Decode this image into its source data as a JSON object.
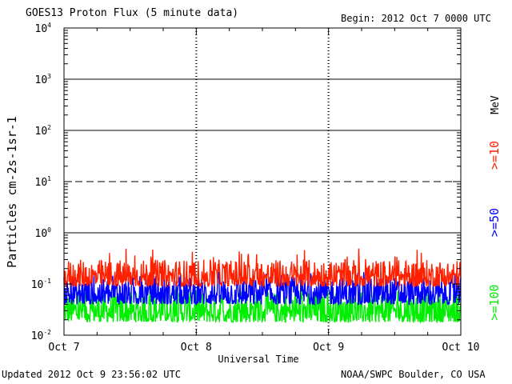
{
  "header": {
    "title": "GOES13 Proton Flux (5 minute data)",
    "begin": "Begin: 2012 Oct 7 0000 UTC"
  },
  "footer": {
    "updated": "Updated 2012 Oct  9 23:56:02 UTC",
    "credit": "NOAA/SWPC Boulder, CO USA"
  },
  "chart_data": {
    "type": "line",
    "title": "GOES13 Proton Flux (5 minute data)",
    "xlabel": "Universal Time",
    "ylabel": "Particles cm-2s-1sr-1",
    "y_scale": "log",
    "ylim": [
      0.01,
      10000
    ],
    "y_ticks": [
      {
        "base": "10",
        "exp": "-2"
      },
      {
        "base": "10",
        "exp": "-1"
      },
      {
        "base": "10",
        "exp": "0"
      },
      {
        "base": "10",
        "exp": "1"
      },
      {
        "base": "10",
        "exp": "2"
      },
      {
        "base": "10",
        "exp": "3"
      },
      {
        "base": "10",
        "exp": "4"
      }
    ],
    "xlim": [
      "2012-10-07",
      "2012-10-10"
    ],
    "x_ticks": [
      "Oct 7",
      "Oct 8",
      "Oct 9",
      "Oct 10"
    ],
    "reference_lines": [
      {
        "value": 1,
        "style": "solid"
      },
      {
        "value": 10,
        "style": "dashed"
      },
      {
        "value": 100,
        "style": "solid"
      },
      {
        "value": 1000,
        "style": "solid"
      }
    ],
    "right_label": "MeV",
    "series": [
      {
        "name": ">=10",
        "color": "#ff2000",
        "typical_range": [
          0.09,
          0.3
        ],
        "peak": 0.5
      },
      {
        "name": ">=50",
        "color": "#0000ff",
        "typical_range": [
          0.04,
          0.14
        ],
        "peak": 0.18
      },
      {
        "name": ">=100",
        "color": "#00ee00",
        "typical_range": [
          0.018,
          0.07
        ],
        "peak": 0.09
      }
    ]
  }
}
